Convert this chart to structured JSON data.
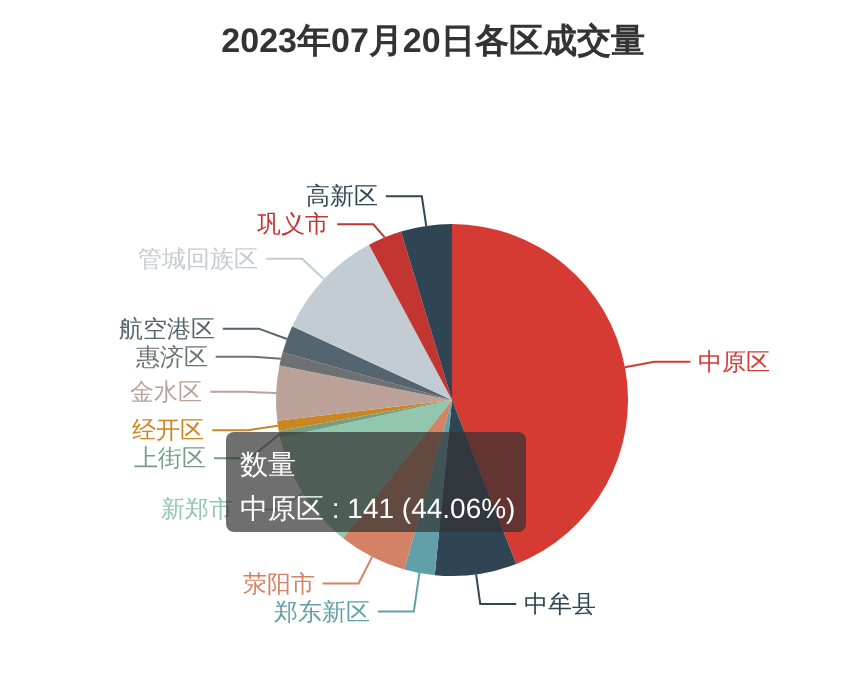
{
  "chart_data": {
    "type": "pie",
    "title": "2023年07月20日各区成交量",
    "categories": [
      "中原区",
      "中牟县",
      "郑东新区",
      "荥阳市",
      "新郑市",
      "上街区",
      "经开区",
      "金水区",
      "惠济区",
      "航空港区",
      "管城回族区",
      "巩义市",
      "高新区"
    ],
    "values": [
      44.06,
      7.5,
      2.81,
      6.25,
      10.94,
      0.63,
      0.94,
      5,
      1.25,
      2.5,
      10.31,
      3.13,
      4.68
    ],
    "colors": [
      "#d63b33",
      "#2f4554",
      "#61a0a8",
      "#d48265",
      "#91c7ae",
      "#749f83",
      "#ca8622",
      "#bda29a",
      "#6e7074",
      "#546570",
      "#c4ccd3",
      "#c23531",
      "#2f4554"
    ],
    "annotations": [
      "数量",
      "中原区 : 141 (44.06%)"
    ]
  }
}
